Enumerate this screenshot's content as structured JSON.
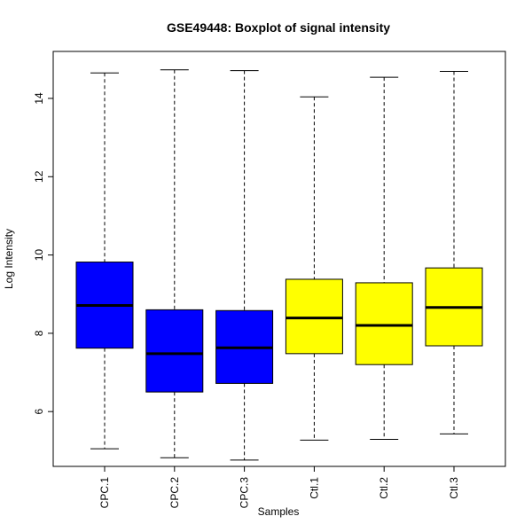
{
  "chart_data": {
    "type": "boxplot",
    "title": "GSE49448: Boxplot of signal intensity",
    "xlabel": "Samples",
    "ylabel": "Log Intensity",
    "ylim": [
      4.6,
      15.2
    ],
    "yticks": [
      6,
      8,
      10,
      12,
      14
    ],
    "grid": false,
    "legend": "none",
    "categories": [
      "CPC.1",
      "CPC.2",
      "CPC.3",
      "Ctl.1",
      "Ctl.2",
      "Ctl.3"
    ],
    "boxes": [
      {
        "label": "CPC.1",
        "min": 5.05,
        "q1": 7.62,
        "median": 8.71,
        "q3": 9.82,
        "max": 14.65,
        "color": "#0000FF"
      },
      {
        "label": "CPC.2",
        "min": 4.82,
        "q1": 6.5,
        "median": 7.48,
        "q3": 8.6,
        "max": 14.73,
        "color": "#0000FF"
      },
      {
        "label": "CPC.3",
        "min": 4.76,
        "q1": 6.72,
        "median": 7.63,
        "q3": 8.58,
        "max": 14.71,
        "color": "#0000FF"
      },
      {
        "label": "Ctl.1",
        "min": 5.27,
        "q1": 7.48,
        "median": 8.39,
        "q3": 9.38,
        "max": 14.04,
        "color": "#FFFF00"
      },
      {
        "label": "Ctl.2",
        "min": 5.29,
        "q1": 7.2,
        "median": 8.2,
        "q3": 9.29,
        "max": 14.54,
        "color": "#FFFF00"
      },
      {
        "label": "Ctl.3",
        "min": 5.43,
        "q1": 7.68,
        "median": 8.66,
        "q3": 9.67,
        "max": 14.69,
        "color": "#FFFF00"
      }
    ]
  }
}
